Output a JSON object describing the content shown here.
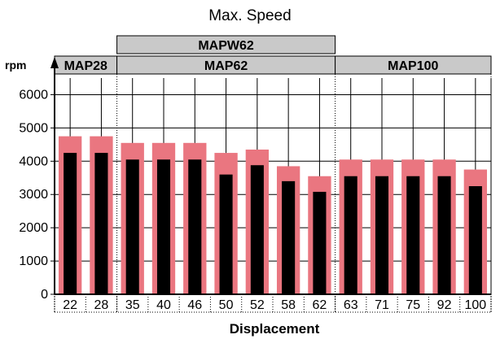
{
  "chart_data": {
    "type": "bar",
    "title": "Max. Speed",
    "xlabel": "Displacement",
    "ylabel": "rpm",
    "ylim": [
      0,
      6500
    ],
    "yticks": [
      0,
      1000,
      2000,
      3000,
      4000,
      5000,
      6000
    ],
    "grid": true,
    "categories": [
      "22",
      "28",
      "35",
      "40",
      "46",
      "50",
      "52",
      "58",
      "62",
      "63",
      "71",
      "75",
      "92",
      "100"
    ],
    "series": [
      {
        "values": [
          4750,
          4750,
          4550,
          4550,
          4550,
          4250,
          4350,
          3850,
          3550,
          4050,
          4050,
          4050,
          4050,
          3750
        ],
        "color": "#ea7680"
      },
      {
        "values": [
          4250,
          4250,
          4050,
          4050,
          4050,
          3600,
          3880,
          3400,
          3080,
          3550,
          3550,
          3550,
          3550,
          3250
        ],
        "color": "#000000"
      }
    ],
    "groups": [
      {
        "label": "MAP28",
        "start_index": 0,
        "end_index": 1,
        "row": 1
      },
      {
        "label": "MAP62",
        "start_index": 2,
        "end_index": 8,
        "row": 1
      },
      {
        "label": "MAP100",
        "start_index": 9,
        "end_index": 13,
        "row": 1
      },
      {
        "label": "MAPW62",
        "start_index": 2,
        "end_index": 8,
        "row": 0
      }
    ]
  },
  "colors": {
    "group_fill": "#c9c9c9",
    "grid": "#000000",
    "background": "#ffffff"
  }
}
